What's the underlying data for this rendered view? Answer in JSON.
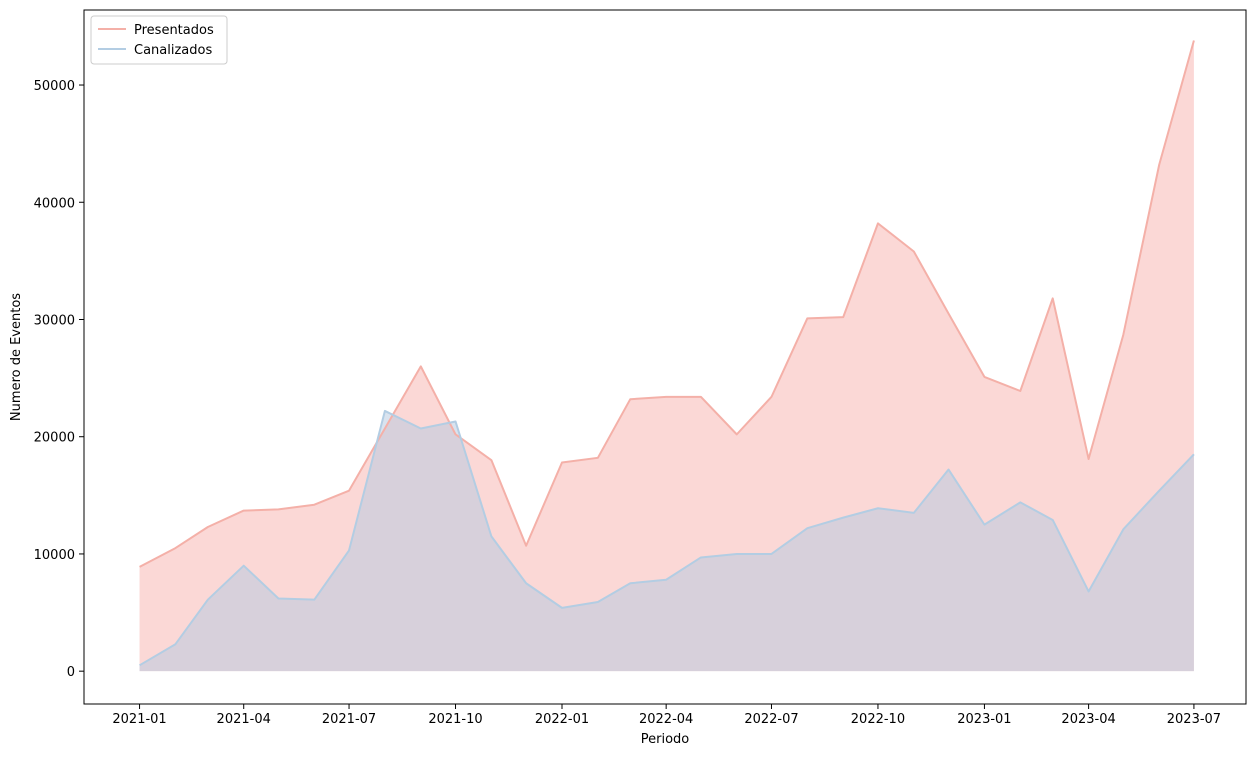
{
  "chart_data": {
    "type": "area",
    "title": "",
    "xlabel": "Periodo",
    "ylabel": "Numero de Eventos",
    "x": [
      "2021-01",
      "2021-02",
      "2021-03",
      "2021-04",
      "2021-05",
      "2021-06",
      "2021-07",
      "2021-08",
      "2021-09",
      "2021-10",
      "2021-11",
      "2021-12",
      "2022-01",
      "2022-02",
      "2022-03",
      "2022-04",
      "2022-05",
      "2022-06",
      "2022-07",
      "2022-08",
      "2022-09",
      "2022-10",
      "2022-11",
      "2022-12",
      "2023-01",
      "2023-02",
      "2023-03",
      "2023-04",
      "2023-05",
      "2023-06",
      "2023-07"
    ],
    "x_ticks": [
      "2021-01",
      "2021-04",
      "2021-07",
      "2021-10",
      "2022-01",
      "2022-04",
      "2022-07",
      "2022-10",
      "2023-01",
      "2023-04",
      "2023-07"
    ],
    "y_ticks": [
      0,
      10000,
      20000,
      30000,
      40000,
      50000
    ],
    "ylim": [
      -2800,
      56400
    ],
    "xlim": [
      "2020-11-14",
      "2023-08-15"
    ],
    "legend_position": "top-left",
    "grid": false,
    "stacked": false,
    "series": [
      {
        "name": "Presentados",
        "line_color": "#f4b0a8",
        "fill_color": "#f7b2ae",
        "values": [
          8900,
          10500,
          12300,
          13700,
          13800,
          14200,
          15400,
          20700,
          26000,
          20200,
          18000,
          10700,
          17800,
          18200,
          23200,
          23400,
          23400,
          20200,
          23400,
          30100,
          30200,
          38200,
          35800,
          30500,
          25100,
          23900,
          31800,
          18100,
          28700,
          43200,
          53800
        ]
      },
      {
        "name": "Canalizados",
        "line_color": "#b3cde3",
        "fill_color": "#b3c8df",
        "values": [
          500,
          2300,
          6100,
          9000,
          6200,
          6100,
          10300,
          22200,
          20700,
          21300,
          11500,
          7500,
          5400,
          5900,
          7500,
          7800,
          9700,
          10000,
          10000,
          12200,
          13100,
          13900,
          13500,
          17200,
          12500,
          14400,
          12900,
          6800,
          12100,
          15400,
          18500
        ]
      }
    ]
  }
}
